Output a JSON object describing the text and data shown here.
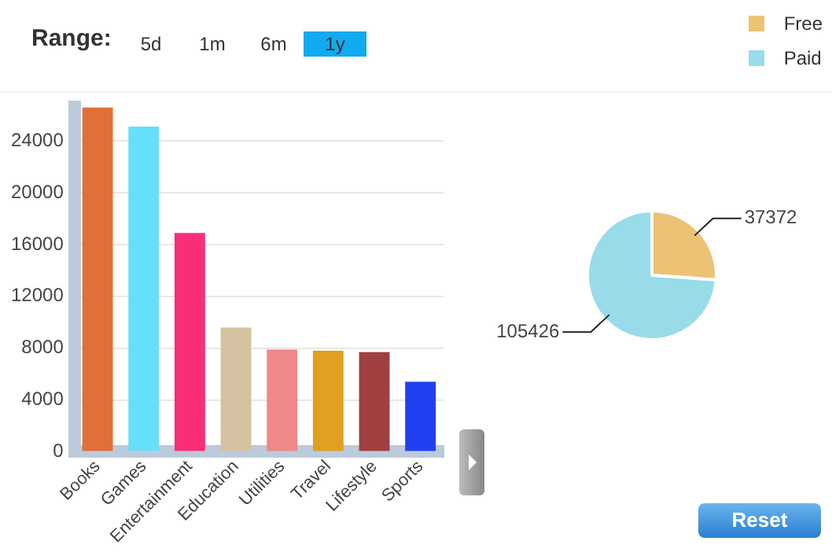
{
  "chart_data": [
    {
      "type": "bar",
      "categories": [
        "Books",
        "Games",
        "Entertainment",
        "Education",
        "Utilities",
        "Travel",
        "Lifestyle",
        "Sports"
      ],
      "values": [
        26600,
        25100,
        16900,
        9600,
        7900,
        7800,
        7700,
        5400
      ],
      "colors": [
        "#e07038",
        "#66e0fa",
        "#f82e78",
        "#d4c2a0",
        "#f08888",
        "#e0a020",
        "#a04040",
        "#2040f0"
      ],
      "ylim": [
        0,
        26600
      ],
      "yticks": [
        0,
        4000,
        8000,
        12000,
        16000,
        20000,
        24000
      ],
      "grid": "y",
      "annotations": [
        "Range:",
        "5d",
        "1m",
        "6m",
        "1y"
      ]
    },
    {
      "type": "pie",
      "categories": [
        "Free",
        "Paid"
      ],
      "values": [
        37372,
        105426
      ],
      "colors": [
        "#ecc275",
        "#98dbe9"
      ],
      "legend": "top right",
      "data_labels": true,
      "annotations": [
        "Reset"
      ]
    }
  ]
}
